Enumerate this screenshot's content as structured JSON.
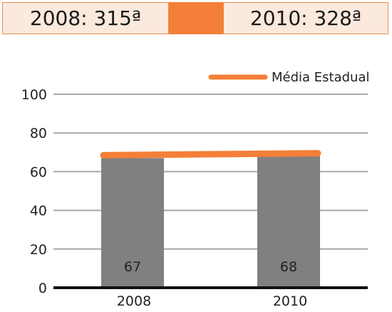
{
  "ranking": {
    "left": "2008: 315ª",
    "right": "2010: 328ª",
    "colors": {
      "box_bg": "#fce9de",
      "border": "#f08a4b",
      "middle": "#f47f38"
    }
  },
  "chart_data": {
    "type": "bar",
    "categories": [
      "2008",
      "2010"
    ],
    "values": [
      67,
      68
    ],
    "data_labels": [
      "67",
      "68"
    ],
    "ylim": [
      0,
      100
    ],
    "yticks": [
      0,
      20,
      40,
      60,
      80,
      100
    ],
    "grid": true,
    "bar_color": "#808080",
    "legend": {
      "position": "top-right",
      "entries": [
        "Média Estadual"
      ]
    },
    "reference_line": {
      "name": "Média Estadual",
      "values": [
        68.5,
        69.5
      ],
      "color": "#f47f38"
    }
  }
}
